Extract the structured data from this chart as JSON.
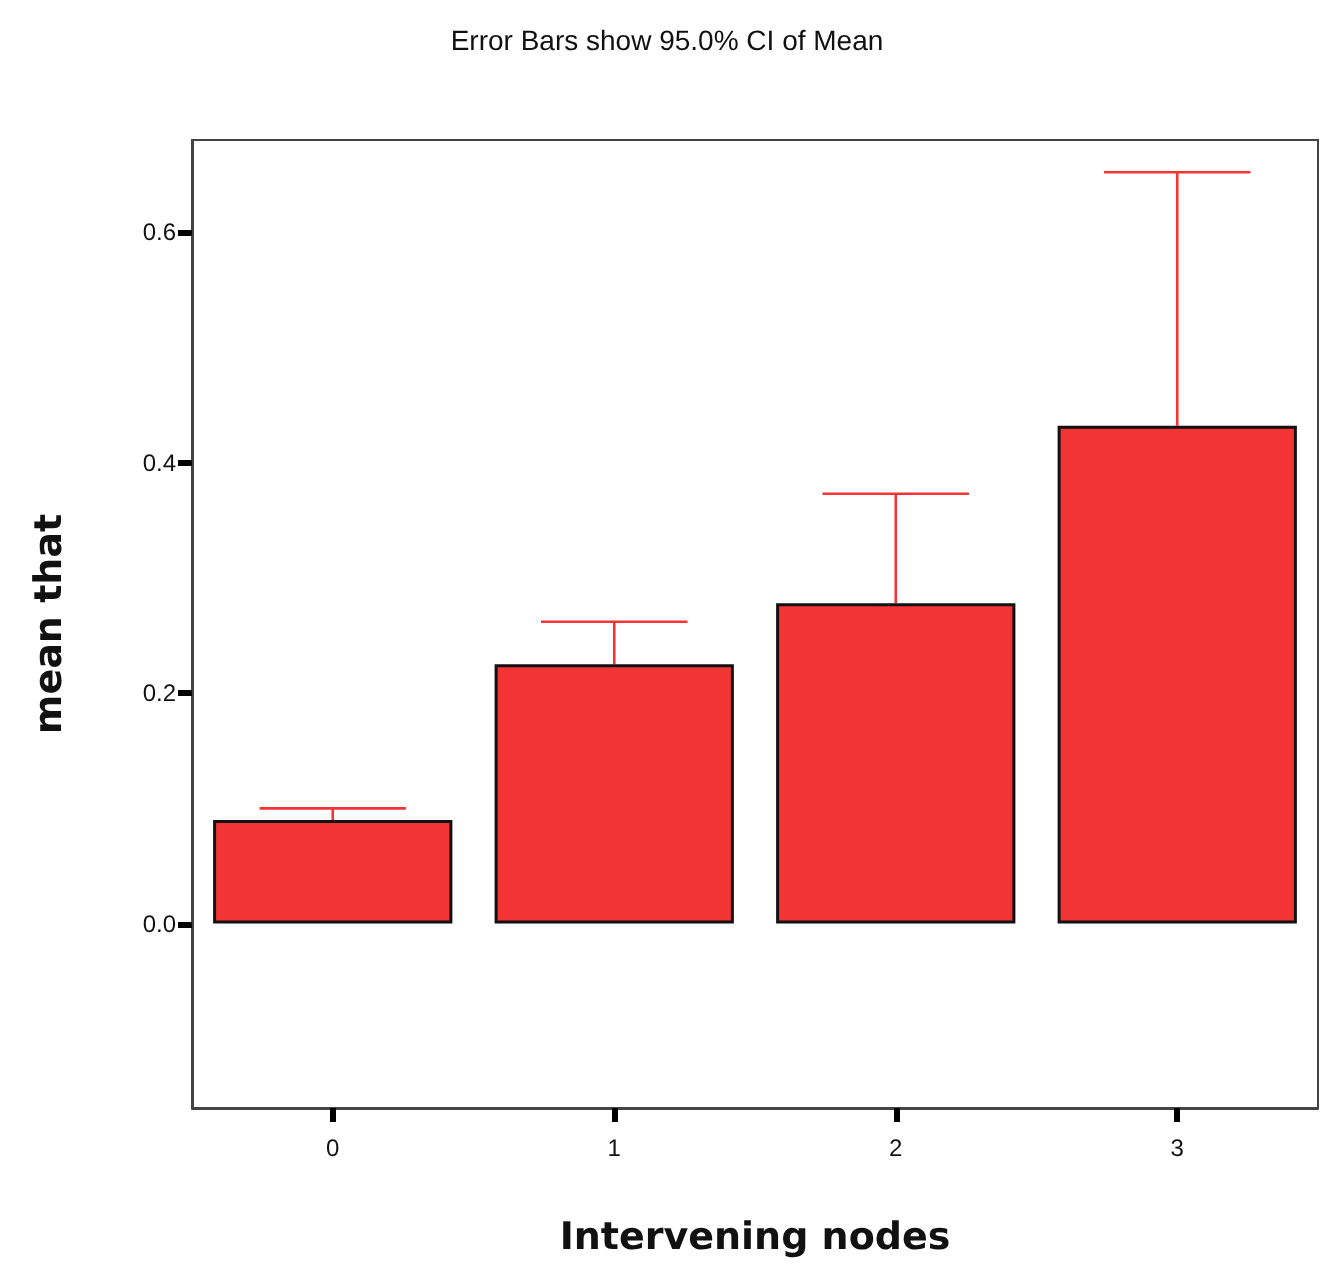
{
  "chart_data": {
    "type": "bar",
    "title": "Error Bars show 95.0% CI of Mean",
    "xlabel": "Intervening nodes",
    "ylabel": "mean that",
    "categories": [
      "0",
      "1",
      "2",
      "3"
    ],
    "values": [
      0.09,
      0.225,
      0.278,
      0.432
    ],
    "errors": [
      [
        0.09,
        0.1
      ],
      [
        0.225,
        0.262
      ],
      [
        0.278,
        0.373
      ],
      [
        0.432,
        0.652
      ]
    ],
    "color": "#f33434",
    "ylim": [
      -0.16,
      0.68
    ],
    "yticks": [
      {
        "value": 0,
        "label": "0.0"
      },
      {
        "value": 0.2,
        "label": "0.2"
      },
      {
        "value": 0.4,
        "label": "0.4"
      },
      {
        "value": 0.6,
        "label": "0.6"
      }
    ],
    "grid": false
  }
}
